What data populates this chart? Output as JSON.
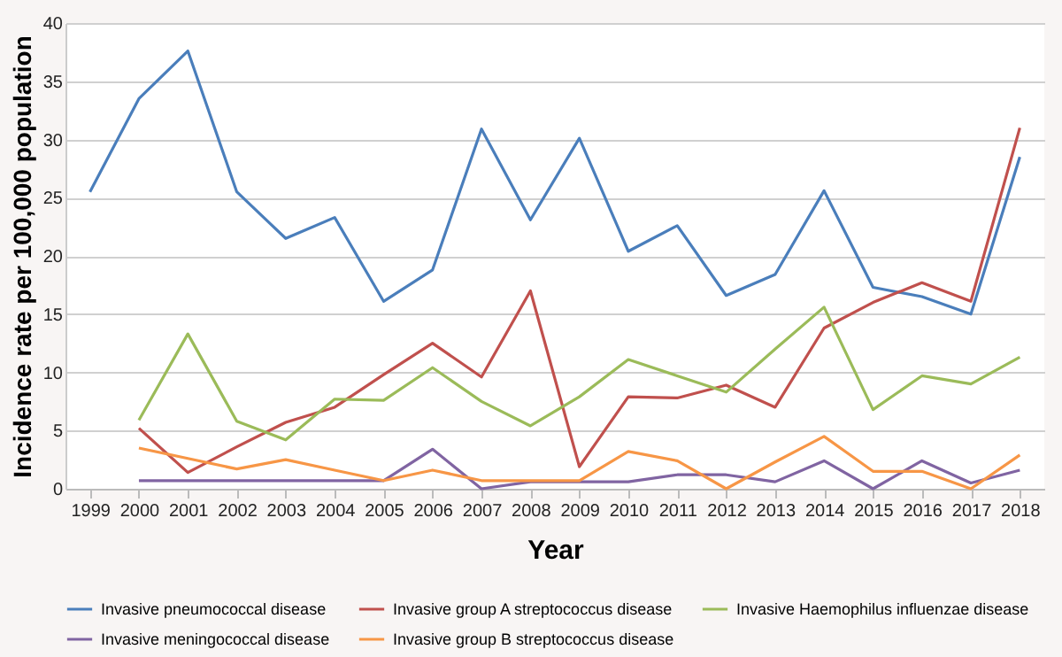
{
  "chart_data": {
    "type": "line",
    "xlabel": "Year",
    "ylabel": "Incidence rate per 100,000 population",
    "categories": [
      "1999",
      "2000",
      "2001",
      "2002",
      "2003",
      "2004",
      "2005",
      "2006",
      "2007",
      "2008",
      "2009",
      "2010",
      "2011",
      "2012",
      "2013",
      "2014",
      "2015",
      "2016",
      "2017",
      "2018"
    ],
    "ylim": [
      0,
      40
    ],
    "yticks": [
      0,
      5,
      10,
      15,
      20,
      25,
      30,
      35,
      40
    ],
    "grid": "y",
    "legend": "bottom",
    "marker": "none",
    "line_style": "solid",
    "series": [
      {
        "name": "Invasive pneumococcal disease",
        "color": "#4a7ebb",
        "values": [
          25.5,
          33.5,
          37.6,
          25.5,
          21.5,
          23.3,
          16.1,
          18.8,
          30.9,
          23.1,
          30.1,
          20.4,
          22.6,
          16.6,
          18.4,
          25.6,
          17.3,
          16.5,
          15.0,
          28.5
        ]
      },
      {
        "name": "Invasive group A streptococcus disease",
        "color": "#c0504d",
        "values": [
          null,
          5.2,
          1.4,
          3.6,
          5.7,
          7.0,
          9.8,
          12.5,
          9.6,
          17.0,
          1.9,
          7.9,
          7.8,
          8.9,
          7.0,
          13.8,
          16.0,
          17.7,
          16.1,
          31.0
        ]
      },
      {
        "name": "Invasive Haemophilus influenzae disease",
        "color": "#9bbb59",
        "values": [
          null,
          5.9,
          13.3,
          5.8,
          4.2,
          7.7,
          7.6,
          10.4,
          7.5,
          5.4,
          7.9,
          11.1,
          9.7,
          8.3,
          12.0,
          15.6,
          6.8,
          9.7,
          9.0,
          11.3
        ]
      },
      {
        "name": "Invasive meningococcal disease",
        "color": "#8064a2",
        "values": [
          null,
          0.7,
          0.7,
          0.7,
          0.7,
          0.7,
          0.7,
          3.4,
          0,
          0.6,
          0.6,
          0.6,
          1.2,
          1.2,
          0.6,
          2.4,
          0,
          2.4,
          0.5,
          1.6
        ]
      },
      {
        "name": "Invasive group B streptococcus disease",
        "color": "#f79646",
        "values": [
          null,
          3.5,
          2.6,
          1.7,
          2.5,
          1.6,
          0.7,
          1.6,
          0.7,
          0.7,
          0.7,
          3.2,
          2.4,
          0,
          2.3,
          4.5,
          1.5,
          1.5,
          0,
          2.9
        ]
      }
    ]
  }
}
